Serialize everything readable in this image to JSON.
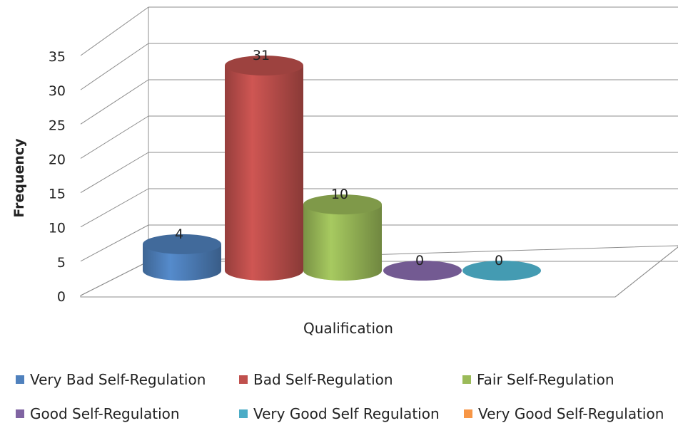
{
  "chart_data": {
    "type": "bar",
    "style": "3d-cylinder",
    "title": "",
    "xlabel": "Qualification",
    "ylabel": "Frequency",
    "ylim": [
      0,
      35
    ],
    "yticks": [
      "0",
      "5",
      "10",
      "15",
      "20",
      "25",
      "30",
      "35"
    ],
    "grid": true,
    "legend_position": "bottom",
    "series": [
      {
        "name": "Very Bad Self-Regulation",
        "value": 4,
        "label": "4",
        "color": "#4F81BD"
      },
      {
        "name": "Bad Self-Regulation",
        "value": 31,
        "label": "31",
        "color": "#C0504D"
      },
      {
        "name": "Fair Self-Regulation",
        "value": 10,
        "label": "10",
        "color": "#9BBB59"
      },
      {
        "name": "Good Self-Regulation",
        "value": 0,
        "label": "0",
        "color": "#8064A2"
      },
      {
        "name": "Very Good Self Regulation",
        "value": 0,
        "label": "0",
        "color": "#4BACC6"
      },
      {
        "name": "Very Good Self-Regulation",
        "value": null,
        "label": "",
        "color": "#F79646"
      }
    ]
  }
}
